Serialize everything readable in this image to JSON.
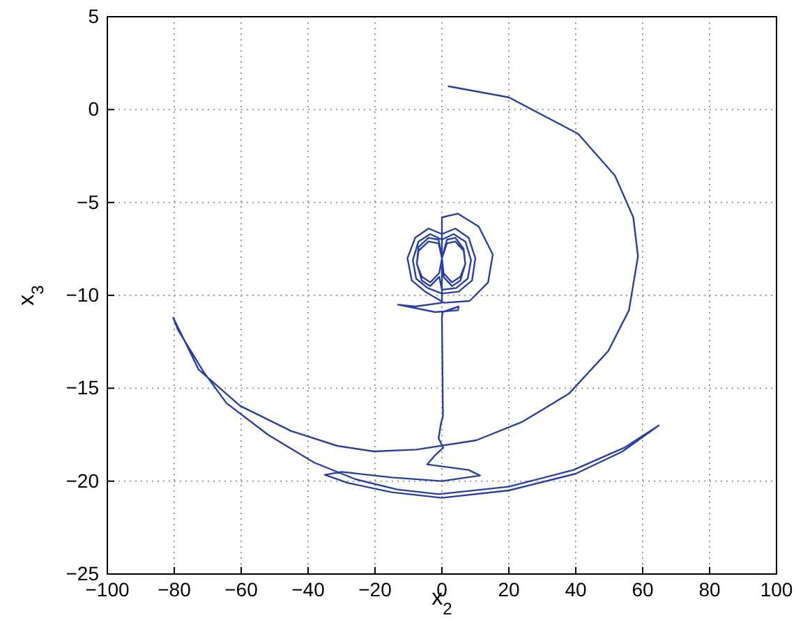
{
  "chart_data": {
    "type": "line",
    "xlabel": "x$_{2}$",
    "ylabel": "x$_{3}$",
    "xlim": [
      -100,
      100
    ],
    "xticks": [
      -100,
      -80,
      -60,
      -40,
      -20,
      0,
      20,
      40,
      60,
      80,
      100
    ],
    "ylim": [
      -25,
      5
    ],
    "yticks": [
      -25,
      -20,
      -15,
      -10,
      -5,
      0,
      5
    ],
    "grid": true,
    "marker": "none",
    "line_style": "solid",
    "series": [
      {
        "color": "#2b3fa3",
        "x": [
          1.8,
          20,
          40.7,
          51.7,
          57.2,
          58.6,
          55.9,
          49.7,
          37.9,
          24.1,
          10.3,
          -7.6,
          -20.3,
          -31.3,
          -45.1,
          -60.3,
          -72.7,
          -80.3,
          -78.9,
          -71.3,
          -64.4,
          -52,
          -38.2,
          -25.8,
          -13.4,
          -1,
          20,
          39.3,
          54.5,
          64.8,
          54,
          40,
          20,
          0,
          -15,
          -28,
          -35,
          -30,
          -15,
          0,
          11.4,
          8,
          -4.4,
          -2,
          0.4,
          -1,
          -0.3,
          0.3,
          0,
          0.2,
          5,
          4.8,
          -2,
          -13.1,
          -8,
          0,
          0,
          4.8,
          11,
          15.2,
          13.8,
          8.3,
          0.7,
          -5,
          -9,
          -10.3,
          -8,
          -4,
          0,
          4,
          8,
          10,
          9,
          5,
          0,
          -4.3,
          -7.7,
          -8.7,
          -7,
          -3.5,
          0,
          3.5,
          7,
          8.7,
          7.7,
          4.3,
          0,
          -0.8,
          -3.5,
          -6,
          -7.5,
          -7,
          -4,
          -1,
          0,
          1.5,
          4,
          6.5,
          7,
          5.5,
          3,
          0.5,
          0,
          -1,
          -4,
          -7,
          -7.5,
          -6,
          -3.5,
          -0.8,
          0,
          0.5,
          3,
          5.5,
          7,
          6.5,
          4,
          1.5,
          0
        ],
        "values": [
          1.26,
          0.66,
          -1.3,
          -3.55,
          -5.8,
          -7.9,
          -10.8,
          -13,
          -15.3,
          -16.8,
          -17.8,
          -18.3,
          -18.4,
          -18.1,
          -17.3,
          -15.95,
          -14,
          -11.2,
          -11.85,
          -14.1,
          -15.8,
          -17.5,
          -19,
          -19.9,
          -20.45,
          -20.7,
          -20.3,
          -19.4,
          -18.2,
          -17,
          -18.4,
          -19.6,
          -20.5,
          -20.9,
          -20.6,
          -20.1,
          -19.66,
          -19.5,
          -19.8,
          -20,
          -19.7,
          -19.4,
          -19.1,
          -18.6,
          -18.2,
          -17.7,
          -16.9,
          -16.5,
          -11.2,
          -10.9,
          -10.6,
          -10.8,
          -10.9,
          -10.5,
          -10.6,
          -10.4,
          -5.8,
          -5.6,
          -6.3,
          -7.8,
          -9.3,
          -10.3,
          -10.4,
          -9.8,
          -9.2,
          -8,
          -6.9,
          -6.4,
          -6.7,
          -6.4,
          -6.9,
          -8,
          -9.2,
          -9.8,
          -9.9,
          -9.6,
          -9.1,
          -8.1,
          -7.1,
          -6.7,
          -7,
          -6.7,
          -7.1,
          -8.1,
          -9.1,
          -9.6,
          -9.7,
          -9,
          -9.5,
          -9.2,
          -8.3,
          -7.4,
          -6.9,
          -7,
          -8,
          -7,
          -6.9,
          -7.5,
          -8.3,
          -9.2,
          -9.5,
          -9,
          -8,
          -7.2,
          -7.1,
          -7.6,
          -8.3,
          -9,
          -9.3,
          -8.8,
          -8,
          -8.8,
          -9.3,
          -9,
          -8.3,
          -7.6,
          -7.1,
          -7.2,
          -8
        ]
      }
    ]
  }
}
